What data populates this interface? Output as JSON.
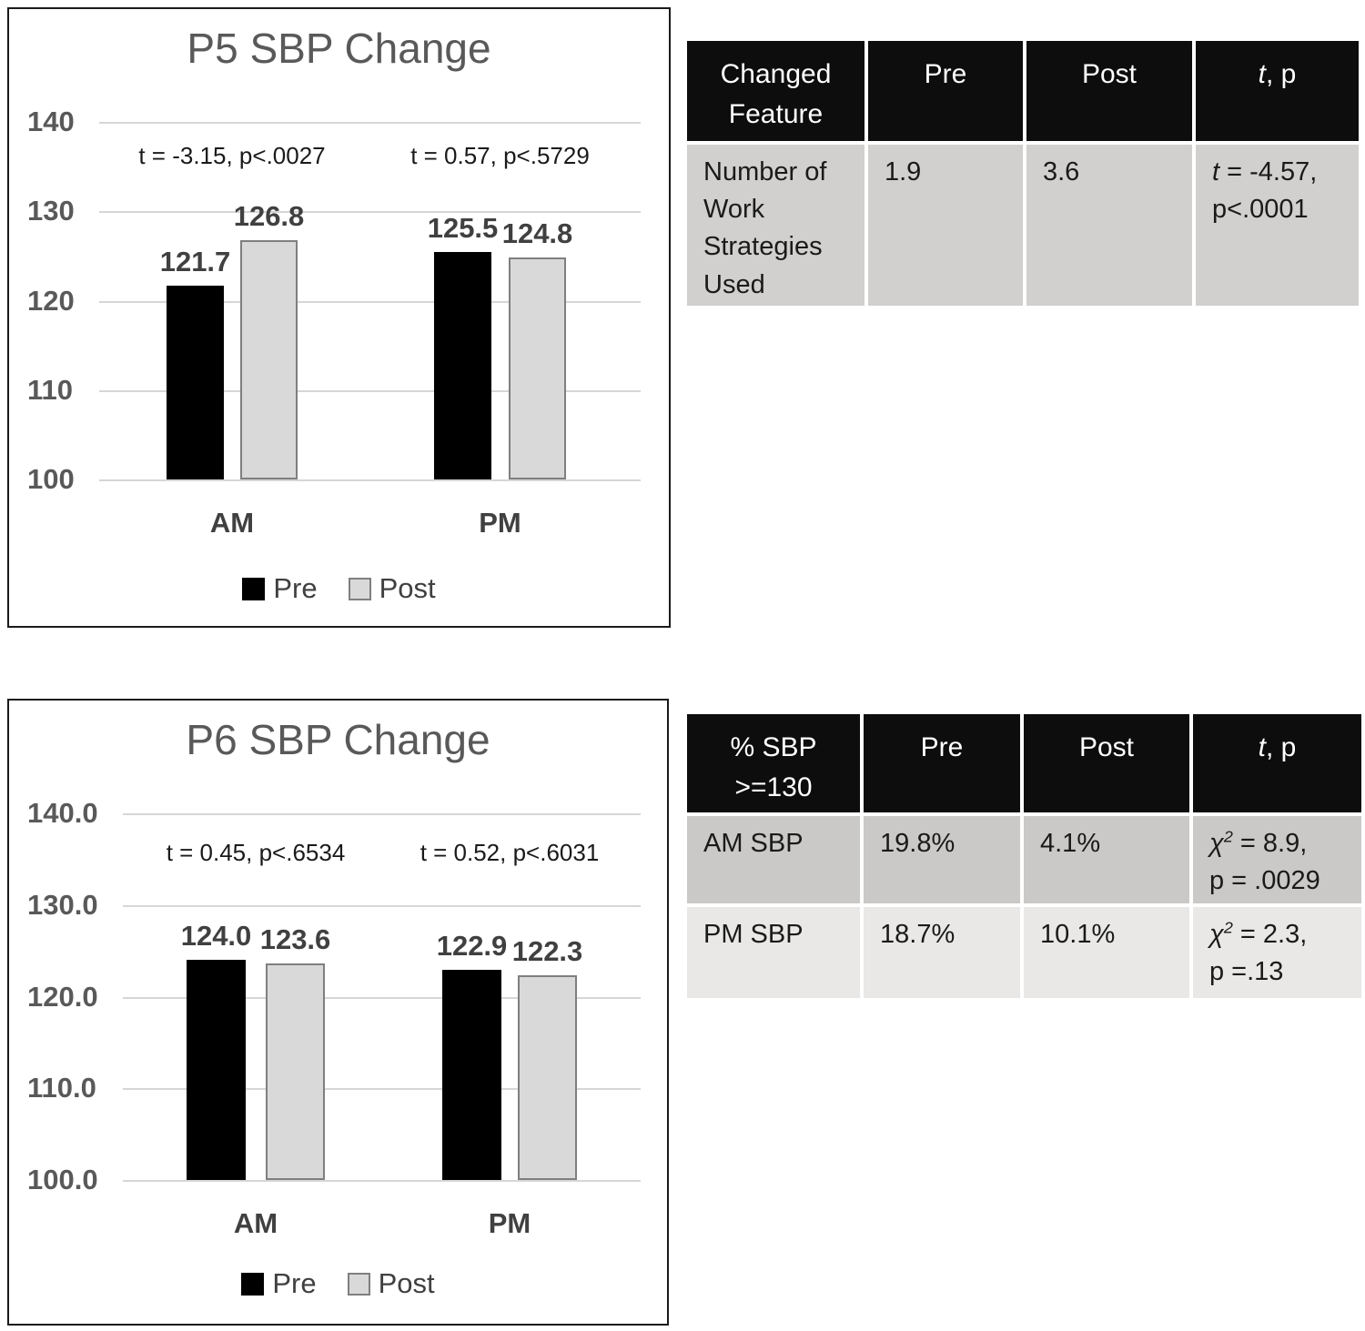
{
  "colors": {
    "pre_bar": "#000000",
    "post_bar": "#d9d9d9",
    "post_bar_border": "#7f7f7f",
    "grid_line": "#d6d6d6",
    "title_text": "#595959",
    "header_bg": "#0d0d0d",
    "header_text": "#ffffff",
    "table1_row_bg": "#d1d0ce",
    "table2_row1_bg": "#cac9c8",
    "table2_row2_bg": "#e9e8e7"
  },
  "chart_data": [
    {
      "type": "bar",
      "title": "P5 SBP Change",
      "categories": [
        "AM",
        "PM"
      ],
      "series": [
        {
          "name": "Pre",
          "color": "#000000",
          "values": [
            121.7,
            125.5
          ],
          "labels": [
            "121.7",
            "125.5"
          ]
        },
        {
          "name": "Post",
          "color": "#d9d9d9",
          "border": "#7f7f7f",
          "values": [
            126.8,
            124.8
          ],
          "labels": [
            "126.8",
            "124.8"
          ]
        }
      ],
      "annotations": [
        "t = -3.15, p<.0027",
        "t = 0.57, p<.5729"
      ],
      "yticks": [
        "140",
        "130",
        "120",
        "110",
        "100"
      ],
      "ylim": [
        100,
        140
      ],
      "xlabel": "",
      "ylabel": "",
      "grid": true,
      "legend_position": "bottom"
    },
    {
      "type": "bar",
      "title": "P6 SBP Change",
      "categories": [
        "AM",
        "PM"
      ],
      "series": [
        {
          "name": "Pre",
          "color": "#000000",
          "values": [
            124.0,
            122.9
          ],
          "labels": [
            "124.0",
            "122.9"
          ]
        },
        {
          "name": "Post",
          "color": "#d9d9d9",
          "border": "#7f7f7f",
          "values": [
            123.6,
            122.3
          ],
          "labels": [
            "123.6",
            "122.3"
          ]
        }
      ],
      "annotations": [
        "t = 0.45, p<.6534",
        "t = 0.52, p<.6031"
      ],
      "yticks": [
        "140.0",
        "130.0",
        "120.0",
        "110.0",
        "100.0"
      ],
      "ylim": [
        100,
        140
      ],
      "xlabel": "",
      "ylabel": "",
      "grid": true,
      "legend_position": "bottom"
    }
  ],
  "tables": [
    {
      "headers": [
        {
          "text": "Changed\nFeature"
        },
        {
          "text": "Pre"
        },
        {
          "text": "Post"
        },
        {
          "symbol": "t",
          "rest": ", p"
        }
      ],
      "rows": [
        {
          "bg": "#d1d0ce",
          "cells": [
            {
              "text": "Number of\nWork\nStrategies\nUsed"
            },
            {
              "text": "1.9"
            },
            {
              "text": "3.6"
            },
            {
              "stat": {
                "symbol": "t",
                "sup": "",
                "rest": " = -4.57,",
                "line2": "p<.0001"
              }
            }
          ]
        }
      ]
    },
    {
      "headers": [
        {
          "text": "% SBP\n>=130"
        },
        {
          "text": "Pre"
        },
        {
          "text": "Post"
        },
        {
          "symbol": "t",
          "rest": ", p"
        }
      ],
      "rows": [
        {
          "bg": "#cac9c8",
          "cells": [
            {
              "text": "AM SBP"
            },
            {
              "text": "19.8%"
            },
            {
              "text": "4.1%"
            },
            {
              "stat": {
                "symbol": "χ",
                "sup": "2",
                "rest": " = 8.9,",
                "line2": "p = .0029"
              }
            }
          ]
        },
        {
          "bg": "#e9e8e7",
          "cells": [
            {
              "text": "PM SBP"
            },
            {
              "text": "18.7%"
            },
            {
              "text": "10.1%"
            },
            {
              "stat": {
                "symbol": "χ",
                "sup": "2",
                "rest": " = 2.3,",
                "line2": "p =.13"
              }
            }
          ]
        }
      ]
    }
  ]
}
